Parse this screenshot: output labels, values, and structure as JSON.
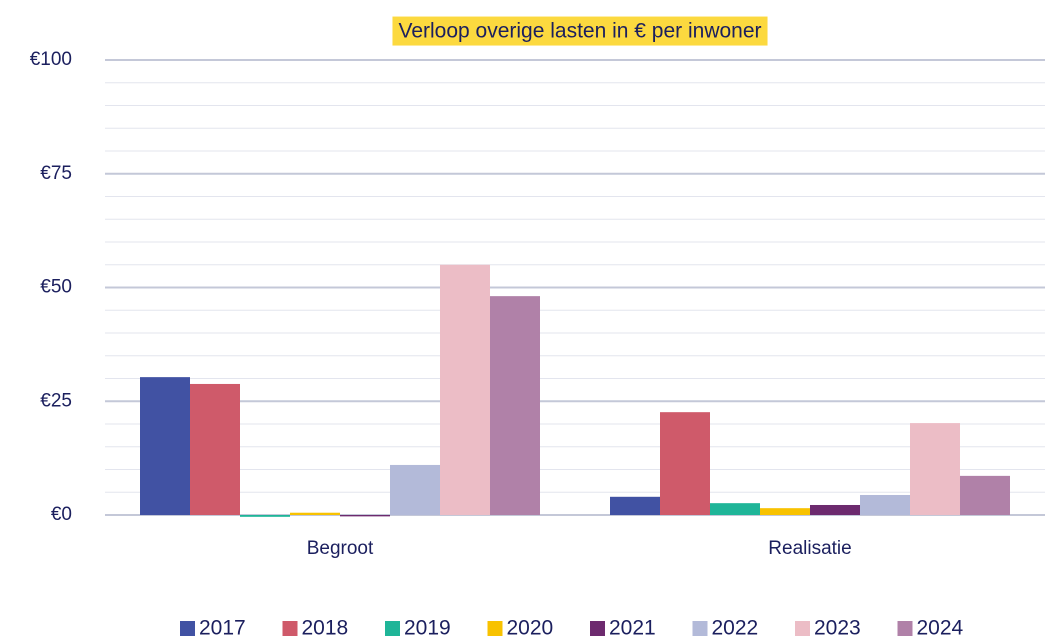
{
  "chart_data": {
    "type": "bar",
    "title": "Verloop overige lasten in € per inwoner",
    "categories": [
      "Begroot",
      "Realisatie"
    ],
    "series": [
      {
        "name": "2017",
        "color": "#4152a3",
        "values": [
          30.3,
          4
        ]
      },
      {
        "name": "2018",
        "color": "#cf5a6a",
        "values": [
          28.8,
          22.6
        ]
      },
      {
        "name": "2019",
        "color": "#1fb598",
        "values": [
          -0.4,
          2.6
        ]
      },
      {
        "name": "2020",
        "color": "#f8c200",
        "values": [
          0.5,
          1.5
        ]
      },
      {
        "name": "2021",
        "color": "#6d2a6e",
        "values": [
          -0.3,
          2.2
        ]
      },
      {
        "name": "2022",
        "color": "#b3bad9",
        "values": [
          11,
          4.4
        ]
      },
      {
        "name": "2023",
        "color": "#ecbdc6",
        "values": [
          55,
          20.2
        ]
      },
      {
        "name": "2024",
        "color": "#b081a8",
        "values": [
          48.1,
          8.6
        ]
      }
    ],
    "ylim": [
      0,
      100
    ],
    "yticks": [
      {
        "value": 0,
        "label": "€0"
      },
      {
        "value": 25,
        "label": "€25"
      },
      {
        "value": 50,
        "label": "€50"
      },
      {
        "value": 75,
        "label": "€75"
      },
      {
        "value": 100,
        "label": "€100"
      }
    ],
    "yminorticks": [
      5,
      10,
      15,
      20,
      30,
      35,
      40,
      45,
      55,
      60,
      65,
      70,
      80,
      85,
      90,
      95
    ],
    "grid": true,
    "legend": "bottom"
  }
}
